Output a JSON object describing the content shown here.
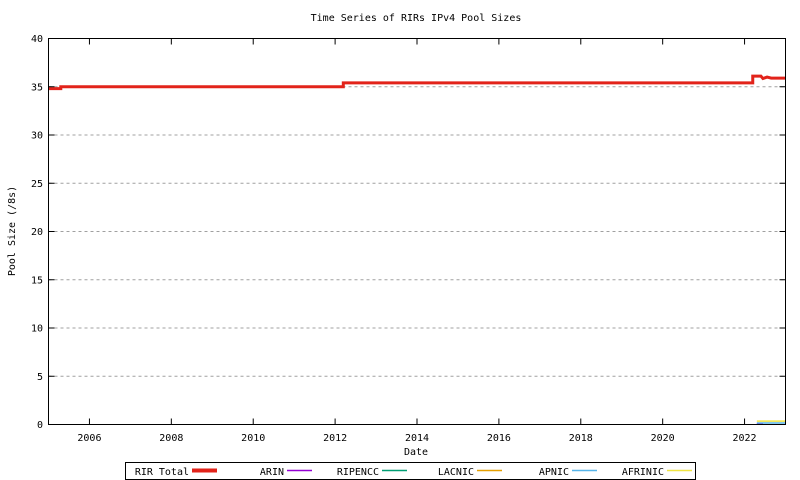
{
  "chart_data": {
    "type": "line",
    "title": "Time Series of RIRs IPv4 Pool Sizes",
    "xlabel": "Date",
    "ylabel": "Pool Size (/8s)",
    "x_range": [
      2005.0,
      2023.0
    ],
    "y_range": [
      0,
      40
    ],
    "x_ticks": [
      2006,
      2008,
      2010,
      2012,
      2014,
      2016,
      2018,
      2020,
      2022
    ],
    "y_ticks": [
      0,
      5,
      10,
      15,
      20,
      25,
      30,
      35,
      40
    ],
    "grid": "horizontal-dashed",
    "grid_color": "#a0a0a0",
    "legend_position": "bottom-outside-boxed",
    "series": [
      {
        "name": "RIR Total",
        "color": "#e2231a",
        "width": 3,
        "points": [
          [
            2005.0,
            34.8
          ],
          [
            2005.3,
            34.8
          ],
          [
            2005.3,
            35.0
          ],
          [
            2012.2,
            35.0
          ],
          [
            2012.2,
            35.4
          ],
          [
            2022.2,
            35.4
          ],
          [
            2022.2,
            36.1
          ],
          [
            2022.4,
            36.1
          ],
          [
            2022.45,
            35.85
          ],
          [
            2022.55,
            36.0
          ],
          [
            2022.65,
            35.9
          ],
          [
            2023.0,
            35.9
          ]
        ]
      },
      {
        "name": "ARIN",
        "color": "#9400d3",
        "width": 1.5,
        "points": [
          [
            2022.3,
            0.07
          ],
          [
            2022.45,
            0.07
          ]
        ]
      },
      {
        "name": "RIPENCC",
        "color": "#009e73",
        "width": 1.5,
        "points": []
      },
      {
        "name": "LACNIC",
        "color": "#e69f00",
        "width": 1.5,
        "points": []
      },
      {
        "name": "APNIC",
        "color": "#56b4e9",
        "width": 1.5,
        "points": [
          [
            2022.3,
            0.15
          ],
          [
            2023.0,
            0.15
          ]
        ]
      },
      {
        "name": "AFRINIC",
        "color": "#f0e442",
        "width": 1.5,
        "points": [
          [
            2022.3,
            0.35
          ],
          [
            2023.0,
            0.35
          ]
        ]
      }
    ]
  }
}
